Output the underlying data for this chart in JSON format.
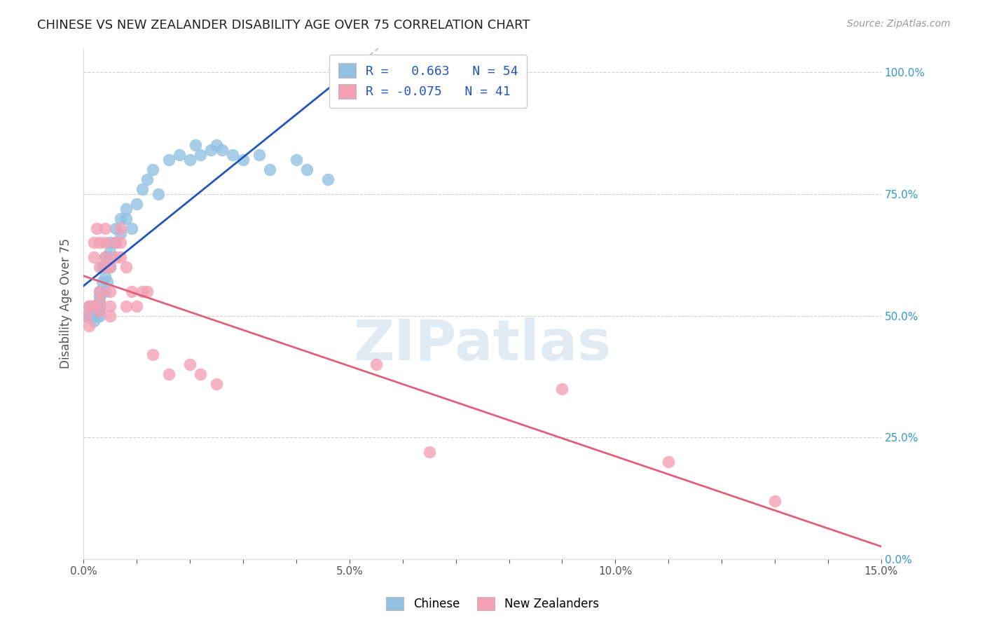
{
  "title": "CHINESE VS NEW ZEALANDER DISABILITY AGE OVER 75 CORRELATION CHART",
  "source": "Source: ZipAtlas.com",
  "ylabel": "Disability Age Over 75",
  "xlim": [
    0.0,
    0.15
  ],
  "ylim": [
    0.0,
    1.05
  ],
  "blue_color": "#92C1E0",
  "pink_color": "#F4A0B5",
  "blue_line_color": "#2255BB",
  "pink_line_color": "#E0607A",
  "watermark": "ZIPatlas",
  "chinese_x": [
    0.0005,
    0.001,
    0.001,
    0.0015,
    0.002,
    0.002,
    0.002,
    0.002,
    0.0025,
    0.0025,
    0.003,
    0.003,
    0.003,
    0.003,
    0.003,
    0.003,
    0.0035,
    0.0035,
    0.004,
    0.004,
    0.004,
    0.004,
    0.0045,
    0.005,
    0.005,
    0.005,
    0.005,
    0.006,
    0.006,
    0.007,
    0.007,
    0.008,
    0.008,
    0.009,
    0.01,
    0.011,
    0.012,
    0.013,
    0.014,
    0.016,
    0.018,
    0.02,
    0.021,
    0.022,
    0.024,
    0.025,
    0.026,
    0.028,
    0.03,
    0.033,
    0.035,
    0.04,
    0.042,
    0.046
  ],
  "chinese_y": [
    0.5,
    0.5,
    0.52,
    0.5,
    0.52,
    0.5,
    0.51,
    0.49,
    0.51,
    0.5,
    0.51,
    0.52,
    0.5,
    0.53,
    0.55,
    0.54,
    0.6,
    0.57,
    0.58,
    0.55,
    0.6,
    0.62,
    0.57,
    0.6,
    0.62,
    0.65,
    0.63,
    0.68,
    0.65,
    0.7,
    0.67,
    0.7,
    0.72,
    0.68,
    0.73,
    0.76,
    0.78,
    0.8,
    0.75,
    0.82,
    0.83,
    0.82,
    0.85,
    0.83,
    0.84,
    0.85,
    0.84,
    0.83,
    0.82,
    0.83,
    0.8,
    0.82,
    0.8,
    0.78
  ],
  "nz_x": [
    0.0005,
    0.001,
    0.001,
    0.0015,
    0.002,
    0.002,
    0.0025,
    0.003,
    0.003,
    0.003,
    0.003,
    0.003,
    0.004,
    0.004,
    0.004,
    0.004,
    0.005,
    0.005,
    0.005,
    0.005,
    0.006,
    0.006,
    0.007,
    0.007,
    0.007,
    0.008,
    0.008,
    0.009,
    0.01,
    0.011,
    0.012,
    0.013,
    0.016,
    0.02,
    0.022,
    0.025,
    0.055,
    0.065,
    0.09,
    0.11,
    0.13
  ],
  "nz_y": [
    0.5,
    0.48,
    0.52,
    0.52,
    0.65,
    0.62,
    0.68,
    0.55,
    0.53,
    0.51,
    0.6,
    0.65,
    0.68,
    0.65,
    0.62,
    0.6,
    0.6,
    0.55,
    0.52,
    0.5,
    0.62,
    0.65,
    0.68,
    0.65,
    0.62,
    0.6,
    0.52,
    0.55,
    0.52,
    0.55,
    0.55,
    0.42,
    0.38,
    0.4,
    0.38,
    0.36,
    0.4,
    0.22,
    0.35,
    0.2,
    0.12
  ]
}
